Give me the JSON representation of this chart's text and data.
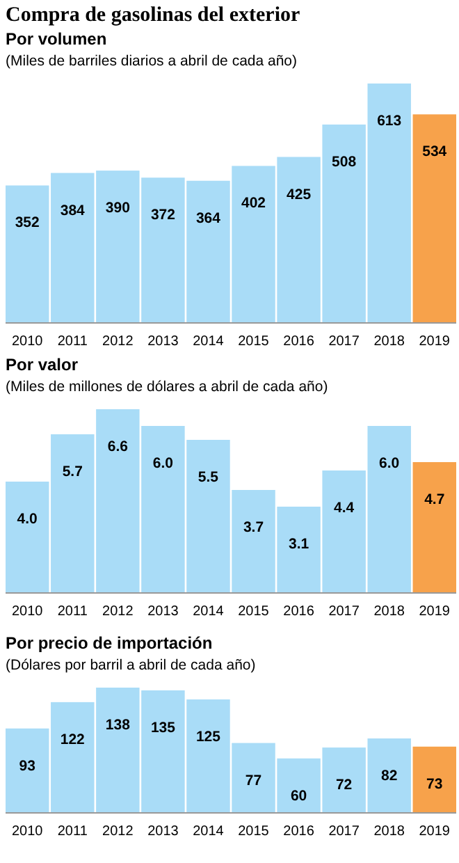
{
  "chart_data": [
    {
      "type": "bar",
      "title": "Por volumen",
      "subtitle": "(Miles de barriles diarios a abril de cada año)",
      "annotations": [
        "Compra de gasolinas del exterior"
      ],
      "categories": [
        "2010",
        "2011",
        "2012",
        "2013",
        "2014",
        "2015",
        "2016",
        "2017",
        "2018",
        "2019"
      ],
      "values": [
        352,
        384,
        390,
        372,
        364,
        402,
        425,
        508,
        613,
        534
      ],
      "colors": [
        "#a9dcf7",
        "#a9dcf7",
        "#a9dcf7",
        "#a9dcf7",
        "#a9dcf7",
        "#a9dcf7",
        "#a9dcf7",
        "#a9dcf7",
        "#a9dcf7",
        "#f7a24b"
      ],
      "data_labels": true,
      "relative": false
    },
    {
      "type": "bar",
      "title": "Por valor",
      "subtitle": "(Miles de millones de dólares a abril de cada año)",
      "categories": [
        "2010",
        "2011",
        "2012",
        "2013",
        "2014",
        "2015",
        "2016",
        "2017",
        "2018",
        "2019"
      ],
      "values": [
        4.0,
        5.7,
        6.6,
        6.0,
        5.5,
        3.7,
        3.1,
        4.4,
        6.0,
        4.7
      ],
      "colors": [
        "#a9dcf7",
        "#a9dcf7",
        "#a9dcf7",
        "#a9dcf7",
        "#a9dcf7",
        "#a9dcf7",
        "#a9dcf7",
        "#a9dcf7",
        "#a9dcf7",
        "#f7a24b"
      ],
      "value_labels": [
        "4.0",
        "5.7",
        "6.6",
        "6.0",
        "5.5",
        "3.7",
        "3.1",
        "4.4",
        "6.0",
        "4.7"
      ]
    },
    {
      "type": "bar",
      "title": "Por precio de importación",
      "subtitle": "(Dólares por barril a abril de cada año)",
      "categories": [
        "2010",
        "2011",
        "2012",
        "2013",
        "2014",
        "2015",
        "2016",
        "2017",
        "2018",
        "2019"
      ],
      "values": [
        93,
        122,
        138,
        135,
        125,
        77,
        60,
        72,
        82,
        73
      ],
      "colors": [
        "#a9dcf7",
        "#a9dcf7",
        "#a9dcf7",
        "#a9dcf7",
        "#a9dcf7",
        "#a9dcf7",
        "#a9dcf7",
        "#a9dcf7",
        "#a9dcf7",
        "#f7a24b"
      ],
      "data_labels": true
    }
  ]
}
